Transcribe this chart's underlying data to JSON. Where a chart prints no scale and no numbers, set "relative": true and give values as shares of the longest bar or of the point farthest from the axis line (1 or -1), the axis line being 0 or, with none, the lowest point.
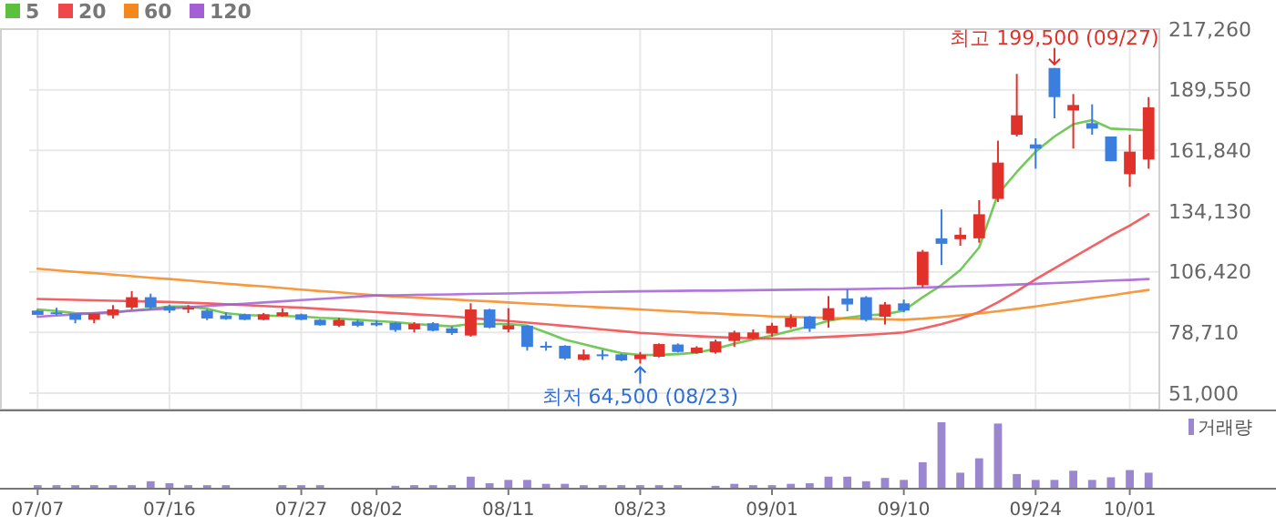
{
  "chart_data": [
    {
      "type": "candlestick",
      "legend": "top left",
      "grid": true,
      "tick_labels": "y",
      "ylim": [
        43500,
        217260
      ],
      "yticks": [
        {
          "value": 51000,
          "label": "51,000"
        },
        {
          "value": 78710,
          "label": "78,710"
        },
        {
          "value": 106420,
          "label": "106,420"
        },
        {
          "value": 134130,
          "label": "134,130"
        },
        {
          "value": 161840,
          "label": "161,840"
        },
        {
          "value": 189550,
          "label": "189,550"
        },
        {
          "value": 217260,
          "label": "217,260"
        }
      ],
      "ohlc": [
        [
          88700,
          89000,
          86500,
          86750
        ],
        [
          87900,
          90000,
          86500,
          87800
        ],
        [
          87300,
          87300,
          82900,
          84500
        ],
        [
          84500,
          87300,
          82900,
          87300
        ],
        [
          86500,
          91200,
          85100,
          89200
        ],
        [
          90100,
          97600,
          89200,
          94800
        ],
        [
          94800,
          96400,
          89200,
          90100
        ],
        [
          90600,
          91400,
          87600,
          88700
        ],
        [
          89500,
          91200,
          87600,
          90000
        ],
        [
          88700,
          89200,
          84300,
          85100
        ],
        [
          86500,
          87900,
          84500,
          84800
        ],
        [
          87000,
          87300,
          84300,
          84500
        ],
        [
          84500,
          87600,
          84300,
          87000
        ],
        [
          86200,
          89800,
          85900,
          87900
        ],
        [
          87000,
          87300,
          84300,
          84500
        ],
        [
          84500,
          84800,
          81800,
          82000
        ],
        [
          81800,
          85400,
          81200,
          84500
        ],
        [
          83700,
          84500,
          81200,
          81800
        ],
        [
          83100,
          84200,
          81500,
          82000
        ],
        [
          83100,
          83400,
          79000,
          79800
        ],
        [
          80100,
          83400,
          78700,
          82600
        ],
        [
          82900,
          83400,
          79200,
          79500
        ],
        [
          80600,
          81500,
          77600,
          78400
        ],
        [
          77300,
          92000,
          76800,
          89200
        ],
        [
          89200,
          89500,
          80600,
          80900
        ],
        [
          80100,
          89800,
          78700,
          82000
        ],
        [
          81800,
          82000,
          70400,
          72100
        ],
        [
          72600,
          74500,
          70400,
          72100
        ],
        [
          72600,
          72900,
          66200,
          66800
        ],
        [
          66200,
          70900,
          65900,
          68700
        ],
        [
          68700,
          70700,
          66200,
          68200
        ],
        [
          68700,
          69000,
          65600,
          65900
        ],
        [
          66500,
          69800,
          64500,
          68500
        ],
        [
          67600,
          73700,
          67300,
          73400
        ],
        [
          73200,
          73700,
          69500,
          69800
        ],
        [
          69300,
          72400,
          69000,
          71800
        ],
        [
          69600,
          75400,
          69000,
          74600
        ],
        [
          74800,
          79500,
          72100,
          78700
        ],
        [
          76000,
          80100,
          75400,
          78700
        ],
        [
          78200,
          83100,
          76800,
          81800
        ],
        [
          81200,
          87000,
          80400,
          85400
        ],
        [
          85900,
          86200,
          79000,
          80400
        ],
        [
          84300,
          95300,
          80900,
          89800
        ],
        [
          94200,
          98400,
          88400,
          91500
        ],
        [
          94800,
          95300,
          83700,
          84500
        ],
        [
          85900,
          92600,
          82300,
          91500
        ],
        [
          92000,
          93700,
          87900,
          88700
        ],
        [
          100300,
          116400,
          99200,
          115600
        ],
        [
          121700,
          134900,
          109500,
          119200
        ],
        [
          121300,
          126600,
          118300,
          123300
        ],
        [
          121700,
          139100,
          119700,
          132700
        ],
        [
          139700,
          166300,
          138300,
          156300
        ],
        [
          169000,
          196800,
          168200,
          177900
        ],
        [
          164600,
          167400,
          153500,
          162700
        ],
        [
          199500,
          199500,
          176500,
          186200
        ],
        [
          180100,
          187600,
          162700,
          182600
        ],
        [
          174300,
          182900,
          169000,
          171800
        ],
        [
          168200,
          168200,
          156900,
          156900
        ],
        [
          151000,
          169000,
          145200,
          161300
        ],
        [
          157700,
          186200,
          153500,
          181500
        ]
      ],
      "colors": [
        "#3a7ee0",
        "#3a7ee0",
        "#3a7ee0",
        "#e0312b",
        "#e0312b",
        "#e0312b",
        "#3a7ee0",
        "#3a7ee0",
        "#e0312b",
        "#3a7ee0",
        "#3a7ee0",
        "#3a7ee0",
        "#e0312b",
        "#e0312b",
        "#3a7ee0",
        "#3a7ee0",
        "#e0312b",
        "#3a7ee0",
        "#3a7ee0",
        "#3a7ee0",
        "#e0312b",
        "#3a7ee0",
        "#3a7ee0",
        "#e0312b",
        "#3a7ee0",
        "#e0312b",
        "#3a7ee0",
        "#3a7ee0",
        "#3a7ee0",
        "#e0312b",
        "#3a7ee0",
        "#3a7ee0",
        "#e0312b",
        "#e0312b",
        "#3a7ee0",
        "#e0312b",
        "#e0312b",
        "#e0312b",
        "#e0312b",
        "#e0312b",
        "#e0312b",
        "#3a7ee0",
        "#e0312b",
        "#3a7ee0",
        "#3a7ee0",
        "#e0312b",
        "#3a7ee0",
        "#e0312b",
        "#3a7ee0",
        "#e0312b",
        "#e0312b",
        "#e0312b",
        "#e0312b",
        "#3a7ee0",
        "#3a7ee0",
        "#e0312b",
        "#3a7ee0",
        "#3a7ee0",
        "#e0312b",
        "#e0312b"
      ],
      "series": [
        {
          "name": "5",
          "type": "line",
          "color": "#5cbf3e",
          "values": [
            89200,
            88500,
            87500,
            87300,
            87700,
            88700,
            89500,
            90600,
            90600,
            89500,
            87500,
            86600,
            86400,
            86200,
            86000,
            85400,
            85100,
            84500,
            83900,
            83400,
            82600,
            82000,
            81500,
            82600,
            82600,
            82600,
            81800,
            78700,
            75400,
            73300,
            71200,
            69300,
            68400,
            68500,
            68800,
            69500,
            71200,
            73500,
            75500,
            77300,
            79500,
            81500,
            84000,
            85500,
            86500,
            87000,
            88700,
            94800,
            100300,
            107200,
            117500,
            141900,
            152000,
            161300,
            168200,
            173800,
            175700,
            171800,
            171400,
            171000
          ]
        },
        {
          "name": "20",
          "type": "line",
          "color": "#f0474a",
          "values": [
            94000,
            93800,
            93600,
            93400,
            93200,
            93000,
            92800,
            92600,
            92300,
            92000,
            91600,
            91200,
            90800,
            90400,
            90000,
            89500,
            89000,
            88500,
            88000,
            87500,
            87000,
            86500,
            86000,
            85300,
            84600,
            83900,
            83200,
            82500,
            81700,
            80900,
            80100,
            79300,
            78500,
            78000,
            77500,
            77000,
            76600,
            76300,
            76000,
            75900,
            76000,
            76300,
            76700,
            77100,
            77600,
            78100,
            78700,
            80500,
            82500,
            85000,
            88000,
            92500,
            97500,
            103000,
            108000,
            113000,
            118000,
            123000,
            127500,
            132700
          ]
        },
        {
          "name": "60",
          "type": "line",
          "color": "#f5871f",
          "values": [
            107800,
            107100,
            106400,
            105800,
            105100,
            104400,
            103700,
            103100,
            102400,
            101700,
            101000,
            100300,
            99700,
            99000,
            98300,
            97600,
            97000,
            96300,
            95600,
            95100,
            94700,
            94200,
            93800,
            93300,
            92900,
            92400,
            91900,
            91500,
            91000,
            90600,
            90100,
            89700,
            89200,
            88700,
            88300,
            87800,
            87400,
            86900,
            86500,
            86000,
            85800,
            85600,
            85400,
            85100,
            84900,
            84700,
            84500,
            85000,
            85700,
            86500,
            87400,
            88400,
            89500,
            90600,
            91800,
            93100,
            94400,
            95600,
            96900,
            98100
          ]
        },
        {
          "name": "120",
          "type": "line",
          "color": "#a35fd3",
          "values": [
            85900,
            86400,
            87000,
            87500,
            88100,
            88600,
            89100,
            89700,
            90200,
            90800,
            91300,
            91800,
            92400,
            92900,
            93500,
            94000,
            94500,
            95100,
            95600,
            95700,
            95900,
            96000,
            96100,
            96300,
            96400,
            96500,
            96700,
            96800,
            96900,
            97100,
            97200,
            97400,
            97500,
            97600,
            97700,
            97800,
            97800,
            97900,
            98000,
            98100,
            98200,
            98300,
            98400,
            98500,
            98600,
            98800,
            98900,
            99200,
            99500,
            99800,
            100000,
            100300,
            100600,
            100900,
            101300,
            101600,
            102000,
            102400,
            102700,
            103100
          ]
        }
      ],
      "annotations": [
        {
          "text": "최고 199,500 (09/27)",
          "y": 199500
        },
        {
          "text": "최저 64,500 (08/23)",
          "y": 64500
        }
      ]
    },
    {
      "type": "bar",
      "relative": true,
      "legend": "top right",
      "tick_labels": "x",
      "categories": [
        "07/07",
        null,
        null,
        null,
        null,
        null,
        null,
        "07/16",
        null,
        null,
        null,
        null,
        null,
        null,
        "07/27",
        null,
        null,
        null,
        "08/02",
        null,
        null,
        null,
        null,
        null,
        null,
        "08/11",
        null,
        null,
        null,
        null,
        null,
        null,
        "08/23",
        null,
        null,
        null,
        null,
        null,
        null,
        "09/01",
        null,
        null,
        null,
        null,
        null,
        null,
        "09/10",
        null,
        null,
        null,
        null,
        null,
        null,
        "09/24",
        null,
        null,
        null,
        null,
        "10/01",
        null
      ],
      "series": [
        {
          "name": "거래량",
          "color": "#9b87cf",
          "values": [
            0.04,
            0.04,
            0.04,
            0.04,
            0.04,
            0.04,
            0.1,
            0.07,
            0.04,
            0.04,
            0.04,
            0,
            0,
            0.04,
            0.04,
            0.04,
            0,
            0,
            0,
            0.03,
            0.04,
            0.04,
            0.04,
            0.17,
            0.07,
            0.12,
            0.12,
            0.06,
            0.06,
            0.04,
            0.04,
            0.04,
            0.04,
            0.04,
            0.04,
            0,
            0.03,
            0.06,
            0.04,
            0.04,
            0.06,
            0.07,
            0.17,
            0.17,
            0.1,
            0.15,
            0.12,
            0.39,
            1,
            0.23,
            0.45,
            0.98,
            0.21,
            0.12,
            0.12,
            0.26,
            0.12,
            0.16,
            0.27,
            0.23
          ]
        }
      ]
    }
  ]
}
